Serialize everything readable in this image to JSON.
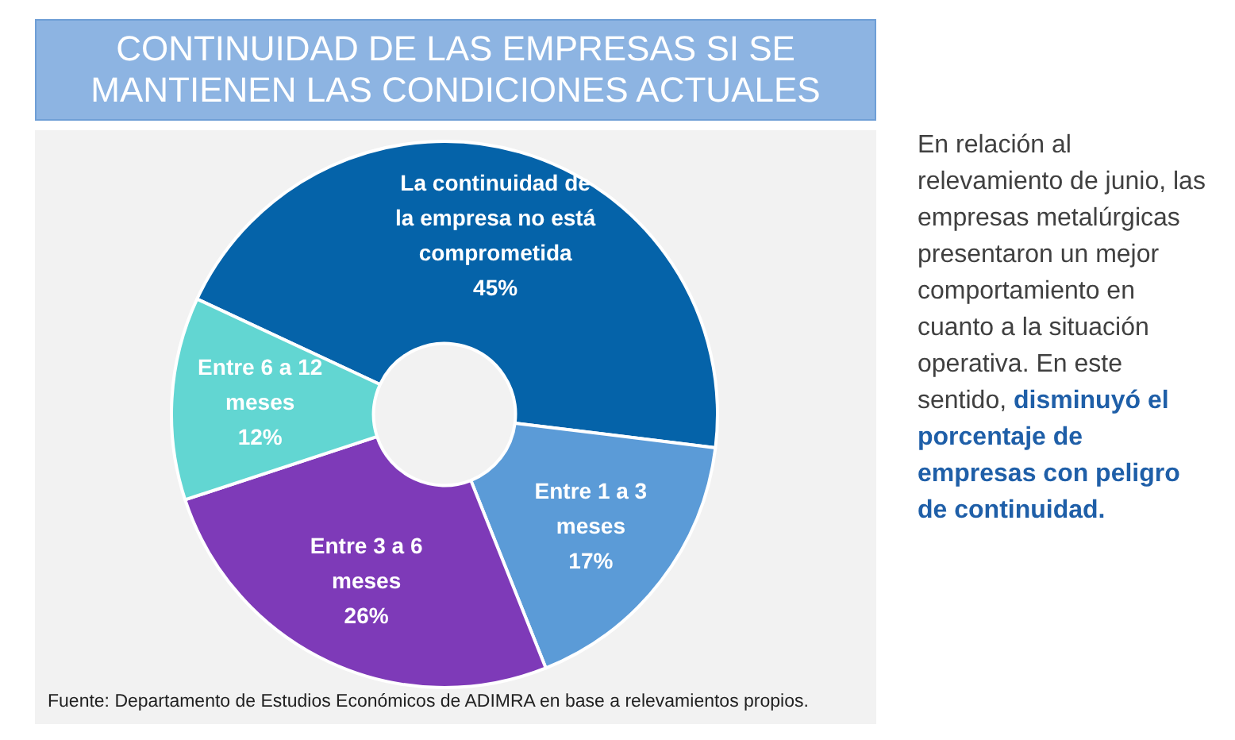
{
  "chart_data": {
    "type": "donut",
    "title": "CONTINUIDAD DE LAS EMPRESAS SI SE MANTIENEN LAS CONDICIONES ACTUALES",
    "categories": [
      "La continuidad de la empresa no está comprometida",
      "Entre 1 a 3 meses",
      "Entre 3 a 6 meses",
      "Entre 6 a 12 meses"
    ],
    "values": [
      45,
      17,
      26,
      12
    ],
    "colors": [
      "#0563a9",
      "#5b9bd7",
      "#7e3ab8",
      "#62d6d2"
    ],
    "value_labels": [
      "45%",
      "17%",
      "26%",
      "12%"
    ],
    "legend": false,
    "annotations": [
      "Fuente: Departamento de Estudios Económicos de ADIMRA  en base a relevamientos propios.",
      "En relación al relevamiento de junio, las empresas metalúrgicas presentaron un mejor comportamiento en cuanto a la situación operativa. En este sentido,",
      "disminuyó el porcentaje de empresas con peligro de continuidad."
    ]
  }
}
